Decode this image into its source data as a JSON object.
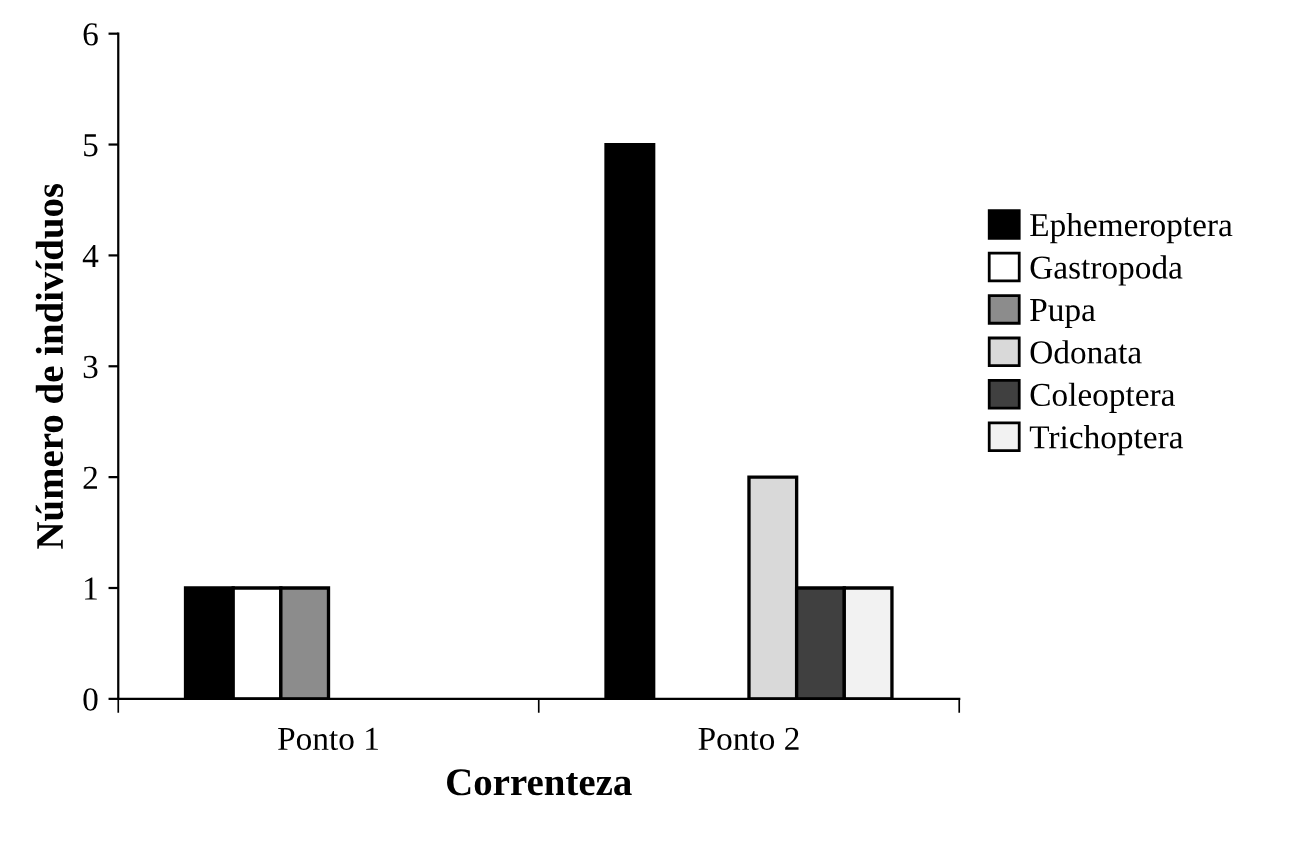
{
  "chart_data": {
    "type": "bar",
    "xlabel": "Correnteza",
    "ylabel": "Número de indivíduos",
    "categories": [
      "Ponto 1",
      "Ponto 2"
    ],
    "series": [
      {
        "name": "Ephemeroptera",
        "color": "#000000",
        "values": [
          1,
          5
        ]
      },
      {
        "name": "Gastropoda",
        "color": "#ffffff",
        "values": [
          1,
          null
        ]
      },
      {
        "name": "Pupa",
        "color": "#8c8c8c",
        "values": [
          1,
          null
        ]
      },
      {
        "name": "Odonata",
        "color": "#d9d9d9",
        "values": [
          null,
          2
        ]
      },
      {
        "name": "Coleoptera",
        "color": "#404040",
        "values": [
          null,
          1
        ]
      },
      {
        "name": "Trichoptera",
        "color": "#f2f2f2",
        "values": [
          null,
          1
        ]
      }
    ],
    "ylim": [
      0,
      6
    ],
    "yticks": [
      0,
      1,
      2,
      3,
      4,
      5,
      6
    ],
    "grid": false,
    "legend": "right"
  }
}
